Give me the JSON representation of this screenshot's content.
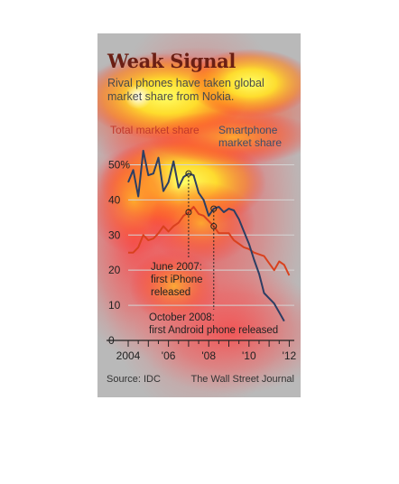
{
  "card": {
    "title": "Weak Signal",
    "subtitle": "Rival phones have taken global market share from Nokia.",
    "legend_total": "Total market share",
    "legend_smartphone_line1": "Smartphone",
    "legend_smartphone_line2": "market share",
    "source": "Source: IDC",
    "publisher": "The Wall Street Journal"
  },
  "colors": {
    "total_line": "#d9411e",
    "smartphone_line": "#2c3e63",
    "title": "#6b1f14",
    "grid": "#d4d4d4"
  },
  "chart_data": {
    "type": "line",
    "title": "Weak Signal",
    "subtitle": "Rival phones have taken global market share from Nokia.",
    "xlabel": "",
    "ylabel": "",
    "x_ticks": [
      {
        "year": 2004,
        "label": "2004"
      },
      {
        "year": 2006,
        "label": "'06"
      },
      {
        "year": 2008,
        "label": "'08"
      },
      {
        "year": 2010,
        "label": "'10"
      },
      {
        "year": 2012,
        "label": "'12"
      }
    ],
    "y_ticks": [
      {
        "value": 50,
        "label": "50%"
      },
      {
        "value": 40,
        "label": "40"
      },
      {
        "value": 30,
        "label": "30"
      },
      {
        "value": 20,
        "label": "20"
      },
      {
        "value": 10,
        "label": "10"
      },
      {
        "value": 0,
        "label": "0"
      }
    ],
    "xlim": [
      2004,
      2012.25
    ],
    "ylim": [
      0,
      55
    ],
    "grid": true,
    "series": [
      {
        "name": "Total market share",
        "color": "#d9411e",
        "points": [
          [
            2004.0,
            25.0
          ],
          [
            2004.25,
            25.0
          ],
          [
            2004.5,
            26.5
          ],
          [
            2004.75,
            30.0
          ],
          [
            2005.0,
            28.5
          ],
          [
            2005.25,
            29.0
          ],
          [
            2005.5,
            30.5
          ],
          [
            2005.75,
            32.5
          ],
          [
            2006.0,
            31.0
          ],
          [
            2006.25,
            32.5
          ],
          [
            2006.5,
            33.5
          ],
          [
            2006.75,
            35.5
          ],
          [
            2007.0,
            36.5
          ],
          [
            2007.25,
            38.0
          ],
          [
            2007.5,
            36.0
          ],
          [
            2007.75,
            35.5
          ],
          [
            2008.0,
            34.0
          ],
          [
            2008.25,
            32.5
          ],
          [
            2008.5,
            30.5
          ],
          [
            2008.75,
            30.5
          ],
          [
            2009.0,
            30.5
          ],
          [
            2009.25,
            28.5
          ],
          [
            2009.5,
            27.5
          ],
          [
            2009.75,
            26.5
          ],
          [
            2010.0,
            26.0
          ],
          [
            2010.25,
            25.0
          ],
          [
            2010.5,
            24.5
          ],
          [
            2010.75,
            24.0
          ],
          [
            2011.0,
            22.0
          ],
          [
            2011.25,
            20.0
          ],
          [
            2011.5,
            22.5
          ],
          [
            2011.75,
            21.5
          ],
          [
            2012.0,
            18.5
          ]
        ]
      },
      {
        "name": "Smartphone market share",
        "color": "#2c3e63",
        "points": [
          [
            2004.0,
            45.0
          ],
          [
            2004.25,
            48.5
          ],
          [
            2004.5,
            41.0
          ],
          [
            2004.75,
            54.0
          ],
          [
            2005.0,
            47.0
          ],
          [
            2005.25,
            47.5
          ],
          [
            2005.5,
            52.0
          ],
          [
            2005.75,
            42.5
          ],
          [
            2006.0,
            45.0
          ],
          [
            2006.25,
            51.0
          ],
          [
            2006.5,
            43.5
          ],
          [
            2006.75,
            46.5
          ],
          [
            2007.0,
            47.5
          ],
          [
            2007.25,
            47.0
          ],
          [
            2007.5,
            42.0
          ],
          [
            2007.75,
            40.0
          ],
          [
            2008.0,
            35.5
          ],
          [
            2008.25,
            37.5
          ],
          [
            2008.5,
            38.0
          ],
          [
            2008.75,
            36.5
          ],
          [
            2009.0,
            37.5
          ],
          [
            2009.25,
            37.0
          ],
          [
            2009.5,
            34.5
          ],
          [
            2009.75,
            31.0
          ],
          [
            2010.0,
            27.5
          ],
          [
            2010.25,
            23.0
          ],
          [
            2010.5,
            19.0
          ],
          [
            2010.75,
            13.5
          ],
          [
            2011.0,
            12.0
          ],
          [
            2011.25,
            10.5
          ],
          [
            2011.5,
            8.0
          ],
          [
            2011.75,
            5.5
          ]
        ]
      }
    ],
    "annotations": [
      {
        "name": "iphone",
        "line1": "June 2007:",
        "line2": "first iPhone",
        "line3": "released",
        "x": 2007.0,
        "y": 47.5
      },
      {
        "name": "android",
        "line1": "October 2008:",
        "line2": "first Android phone released",
        "line3": "",
        "x": 2008.25,
        "y": 37.5
      }
    ]
  }
}
